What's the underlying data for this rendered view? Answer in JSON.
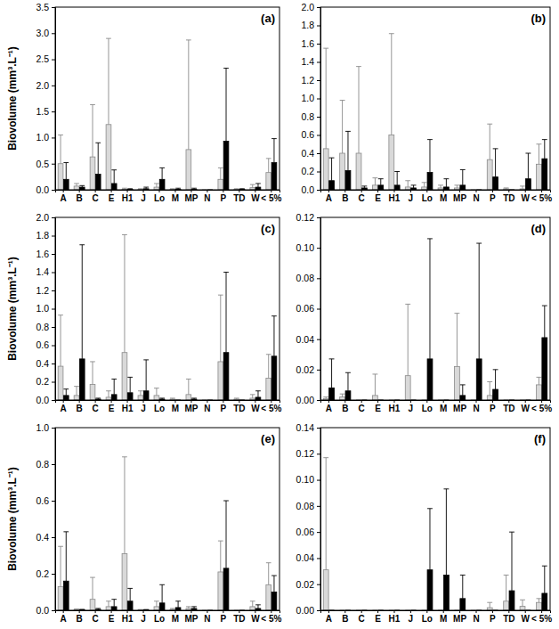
{
  "chart_data": [
    {
      "type": "bar",
      "title": "(a)",
      "y_label": "Biovolume (mm³.L⁻¹)",
      "categories": [
        "A",
        "B",
        "C",
        "E",
        "H1",
        "J",
        "Lo",
        "M",
        "MP",
        "N",
        "P",
        "TD",
        "W",
        "< 5%"
      ],
      "series": [
        {
          "color": "#d9d9d9",
          "values": [
            0.5,
            0.07,
            0.63,
            1.25,
            0.01,
            0.01,
            0.05,
            0.01,
            0.77,
            0,
            0.2,
            0.01,
            0.04,
            0.33
          ],
          "errors": [
            0.55,
            0.05,
            1.0,
            1.65,
            0.02,
            0.01,
            0.07,
            0.01,
            2.1,
            0,
            0.22,
            0.01,
            0.06,
            0.27
          ]
        },
        {
          "color": "#000000",
          "values": [
            0.2,
            0.05,
            0.3,
            0.12,
            0.01,
            0.02,
            0.2,
            0.01,
            0.01,
            0,
            0.93,
            0.01,
            0.05,
            0.52
          ],
          "errors": [
            0.32,
            0.03,
            0.6,
            0.26,
            0.01,
            0.03,
            0.22,
            0.02,
            0.02,
            0,
            1.4,
            0.01,
            0.07,
            0.46
          ]
        }
      ],
      "ylim": [
        0,
        3.5
      ],
      "yticks": [
        {
          "value": 0,
          "label": "0.0"
        },
        0.5,
        {
          "value": 1,
          "label": "1.0"
        },
        1.5,
        {
          "value": 2,
          "label": "2.0"
        },
        2.5,
        {
          "value": 3,
          "label": "3.0"
        },
        3.5
      ]
    },
    {
      "type": "bar",
      "title": "(b)",
      "categories": [
        "A",
        "B",
        "C",
        "E",
        "H1",
        "J",
        "Lo",
        "M",
        "MP",
        "N",
        "P",
        "TD",
        "W",
        "< 5%"
      ],
      "series": [
        {
          "color": "#d9d9d9",
          "values": [
            0.45,
            0.4,
            0.4,
            0.05,
            0.6,
            0.03,
            0.03,
            0.02,
            0.02,
            0,
            0.33,
            0.01,
            0.01,
            0.28
          ],
          "errors": [
            1.1,
            0.58,
            0.95,
            0.08,
            1.11,
            0.07,
            0.05,
            0.03,
            0.03,
            0,
            0.39,
            0.01,
            0.03,
            0.22
          ]
        },
        {
          "color": "#000000",
          "values": [
            0.1,
            0.21,
            0.02,
            0.05,
            0.05,
            0.02,
            0.19,
            0.03,
            0.05,
            0,
            0.14,
            0,
            0.12,
            0.34
          ],
          "errors": [
            0.25,
            0.43,
            0.02,
            0.07,
            0.15,
            0.03,
            0.36,
            0.09,
            0.17,
            0,
            0.31,
            0,
            0.28,
            0.21
          ]
        }
      ],
      "ylim": [
        0,
        2
      ],
      "yticks": [
        {
          "value": 0,
          "label": "0.0"
        },
        0.2,
        0.4,
        0.6,
        0.8,
        {
          "value": 1,
          "label": "1.0"
        },
        1.2,
        1.4,
        1.6,
        1.8,
        {
          "value": 2,
          "label": "2.0"
        }
      ]
    },
    {
      "type": "bar",
      "title": "(c)",
      "y_label": "Biovolume (mm³.L⁻¹)",
      "categories": [
        "A",
        "B",
        "C",
        "E",
        "H1",
        "J",
        "Lo",
        "M",
        "MP",
        "N",
        "P",
        "TD",
        "W",
        "< 5%"
      ],
      "series": [
        {
          "color": "#d9d9d9",
          "values": [
            0.37,
            0.05,
            0.17,
            0.03,
            0.52,
            0.05,
            0.05,
            0.01,
            0.06,
            0,
            0.42,
            0.01,
            0.02,
            0.24
          ],
          "errors": [
            0.56,
            0.1,
            0.25,
            0.07,
            1.29,
            0.05,
            0.08,
            0.01,
            0.17,
            0,
            0.73,
            0.01,
            0.04,
            0.26
          ]
        },
        {
          "color": "#000000",
          "values": [
            0.05,
            0.45,
            0.01,
            0.06,
            0.08,
            0.1,
            0.01,
            0,
            0.01,
            0,
            0.52,
            0,
            0.03,
            0.48
          ],
          "errors": [
            0.07,
            1.25,
            0.01,
            0.17,
            0.17,
            0.34,
            0.01,
            0,
            0.01,
            0,
            0.88,
            0,
            0.07,
            0.44
          ]
        }
      ],
      "ylim": [
        0,
        2
      ],
      "yticks": [
        {
          "value": 0,
          "label": "0.0"
        },
        0.2,
        0.4,
        0.6,
        0.8,
        {
          "value": 1,
          "label": "1.0"
        },
        1.2,
        1.4,
        1.6,
        1.8,
        {
          "value": 2,
          "label": "2.0"
        }
      ]
    },
    {
      "type": "bar",
      "title": "(d)",
      "categories": [
        "A",
        "B",
        "C",
        "E",
        "H1",
        "J",
        "Lo",
        "M",
        "MP",
        "N",
        "P",
        "TD",
        "W",
        "< 5%"
      ],
      "series": [
        {
          "color": "#d9d9d9",
          "values": [
            0.001,
            0.002,
            0,
            0.003,
            0,
            0.016,
            0,
            0,
            0.022,
            0,
            0.003,
            0,
            0,
            0.01
          ],
          "errors": [
            0.001,
            0.002,
            0,
            0.014,
            0,
            0.047,
            0,
            0,
            0.035,
            0,
            0.009,
            0,
            0,
            0.005
          ]
        },
        {
          "color": "#000000",
          "values": [
            0.008,
            0.006,
            0,
            0,
            0,
            0,
            0.027,
            0,
            0.003,
            0.027,
            0.007,
            0,
            0,
            0.041
          ],
          "errors": [
            0.019,
            0.012,
            0,
            0,
            0,
            0,
            0.079,
            0,
            0.007,
            0.076,
            0.013,
            0,
            0,
            0.021
          ]
        }
      ],
      "ylim": [
        0,
        0.12
      ],
      "yticks": [
        {
          "value": 0,
          "label": "0.00"
        },
        0.02,
        0.04,
        0.06,
        0.08,
        {
          "value": 0.1,
          "label": "0.10"
        },
        0.12
      ]
    },
    {
      "type": "bar",
      "title": "(e)",
      "y_label": "Biovolume (mm³.L⁻¹)",
      "categories": [
        "A",
        "B",
        "C",
        "E",
        "H1",
        "J",
        "Lo",
        "M",
        "MP",
        "N",
        "P",
        "TD",
        "W",
        "< 5%"
      ],
      "series": [
        {
          "color": "#d9d9d9",
          "values": [
            0.13,
            0.005,
            0.06,
            0.02,
            0.31,
            0.002,
            0.02,
            0.005,
            0.01,
            0,
            0.21,
            0,
            0.02,
            0.14
          ],
          "errors": [
            0.22,
            0.002,
            0.12,
            0.03,
            0.53,
            0.002,
            0.03,
            0.005,
            0.01,
            0,
            0.17,
            0,
            0.03,
            0.12
          ]
        },
        {
          "color": "#000000",
          "values": [
            0.16,
            0.003,
            0.005,
            0.02,
            0.05,
            0.002,
            0.04,
            0.015,
            0.01,
            0,
            0.23,
            0,
            0.01,
            0.1
          ],
          "errors": [
            0.27,
            0.002,
            0.005,
            0.04,
            0.07,
            0.002,
            0.1,
            0.035,
            0.01,
            0,
            0.37,
            0,
            0.02,
            0.09
          ]
        }
      ],
      "ylim": [
        0,
        1
      ],
      "yticks": [
        {
          "value": 0,
          "label": "0.0"
        },
        0.2,
        0.4,
        0.6,
        0.8,
        {
          "value": 1,
          "label": "1.0"
        }
      ]
    },
    {
      "type": "bar",
      "title": "(f)",
      "categories": [
        "A",
        "B",
        "C",
        "E",
        "H1",
        "J",
        "Lo",
        "M",
        "MP",
        "N",
        "P",
        "TD",
        "W",
        "< 5%"
      ],
      "series": [
        {
          "color": "#d9d9d9",
          "values": [
            0.031,
            0,
            0,
            0,
            0,
            0,
            0,
            0,
            0,
            0,
            0.002,
            0.007,
            0.003,
            0.006
          ],
          "errors": [
            0.086,
            0,
            0,
            0,
            0,
            0,
            0,
            0,
            0,
            0,
            0.004,
            0.02,
            0.005,
            0.003
          ]
        },
        {
          "color": "#000000",
          "values": [
            0,
            0,
            0,
            0,
            0,
            0,
            0.031,
            0.027,
            0.009,
            0,
            0,
            0.015,
            0,
            0.013
          ],
          "errors": [
            0,
            0,
            0,
            0,
            0,
            0,
            0.047,
            0.066,
            0.018,
            0,
            0,
            0.045,
            0,
            0.021
          ]
        }
      ],
      "ylim": [
        0,
        0.14
      ],
      "yticks": [
        {
          "value": 0,
          "label": "0.00"
        },
        0.02,
        0.04,
        0.06,
        0.08,
        {
          "value": 0.1,
          "label": "0.10"
        },
        0.12,
        0.14
      ]
    }
  ]
}
